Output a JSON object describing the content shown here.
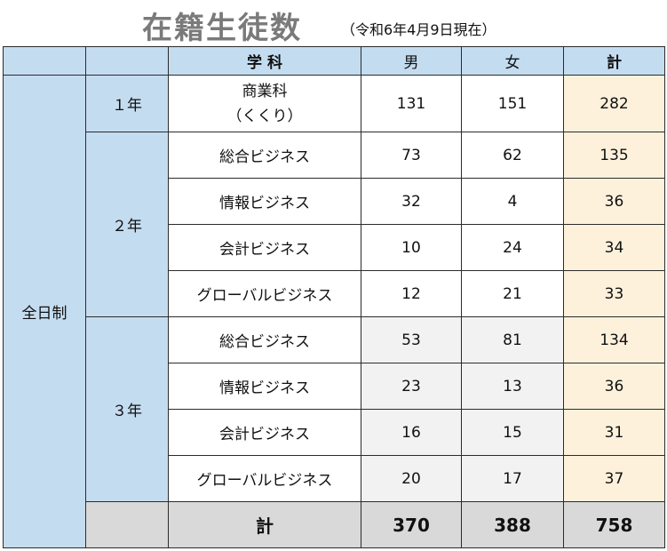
{
  "title": {
    "main": "在籍生徒数",
    "sub": "（令和6年4月9日現在）"
  },
  "header": {
    "subject": "学 科",
    "male": "男",
    "female": "女",
    "total": "計"
  },
  "course": "全日制",
  "grades": {
    "g1": "１年",
    "g2": "２年",
    "g3": "３年"
  },
  "rows": [
    {
      "subject_line1": "商業科",
      "subject_line2": "（くくり）",
      "male": "131",
      "female": "151",
      "total": "282"
    },
    {
      "subject": "総合ビジネス",
      "male": "73",
      "female": "62",
      "total": "135"
    },
    {
      "subject": "情報ビジネス",
      "male": "32",
      "female": "4",
      "total": "36"
    },
    {
      "subject": "会計ビジネス",
      "male": "10",
      "female": "24",
      "total": "34"
    },
    {
      "subject": "グローバルビジネス",
      "male": "12",
      "female": "21",
      "total": "33"
    },
    {
      "subject": "総合ビジネス",
      "male": "53",
      "female": "81",
      "total": "134"
    },
    {
      "subject": "情報ビジネス",
      "male": "23",
      "female": "13",
      "total": "36"
    },
    {
      "subject": "会計ビジネス",
      "male": "16",
      "female": "15",
      "total": "31"
    },
    {
      "subject": "グローバルビジネス",
      "male": "20",
      "female": "17",
      "total": "37"
    }
  ],
  "totals": {
    "label": "計",
    "male": "370",
    "female": "388",
    "total": "758"
  },
  "colors": {
    "header_blue": "#c4dcf0",
    "total_column": "#fdf1dc",
    "grand_total_row": "#d9d9d9",
    "title_grey": "#7a7a7a"
  }
}
